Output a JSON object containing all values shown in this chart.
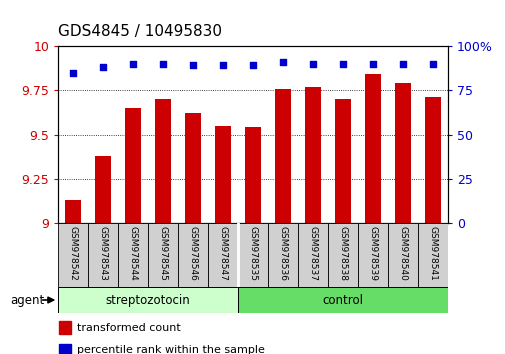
{
  "title": "GDS4845 / 10495830",
  "samples": [
    "GSM978542",
    "GSM978543",
    "GSM978544",
    "GSM978545",
    "GSM978546",
    "GSM978547",
    "GSM978535",
    "GSM978536",
    "GSM978537",
    "GSM978538",
    "GSM978539",
    "GSM978540",
    "GSM978541"
  ],
  "bar_values": [
    9.13,
    9.38,
    9.65,
    9.7,
    9.62,
    9.55,
    9.54,
    9.76,
    9.77,
    9.7,
    9.84,
    9.79,
    9.71
  ],
  "percentile_values": [
    85,
    88,
    90,
    90,
    89,
    89,
    89,
    91,
    90,
    90,
    90,
    90,
    90
  ],
  "bar_color": "#cc0000",
  "dot_color": "#0000cc",
  "ylim_left": [
    9.0,
    10.0
  ],
  "ylim_right": [
    0,
    100
  ],
  "yticks_left": [
    9.0,
    9.25,
    9.5,
    9.75,
    10.0
  ],
  "yticks_right": [
    0,
    25,
    50,
    75,
    100
  ],
  "ytick_labels_left": [
    "9",
    "9.25",
    "9.5",
    "9.75",
    "10"
  ],
  "ytick_labels_right": [
    "0",
    "25",
    "50",
    "75",
    "100%"
  ],
  "group1_color": "#ccffcc",
  "group2_color": "#66dd66",
  "group1_label": "streptozotocin",
  "group1_count": 6,
  "group2_label": "control",
  "group2_count": 7,
  "agent_label": "agent",
  "legend_items": [
    {
      "label": "transformed count",
      "color": "#cc0000"
    },
    {
      "label": "percentile rank within the sample",
      "color": "#0000cc"
    }
  ],
  "bg_color": "#ffffff",
  "plot_bg_color": "#ffffff",
  "title_fontsize": 11,
  "axis_fontsize": 9,
  "label_fontsize": 6.5,
  "bar_width": 0.55
}
